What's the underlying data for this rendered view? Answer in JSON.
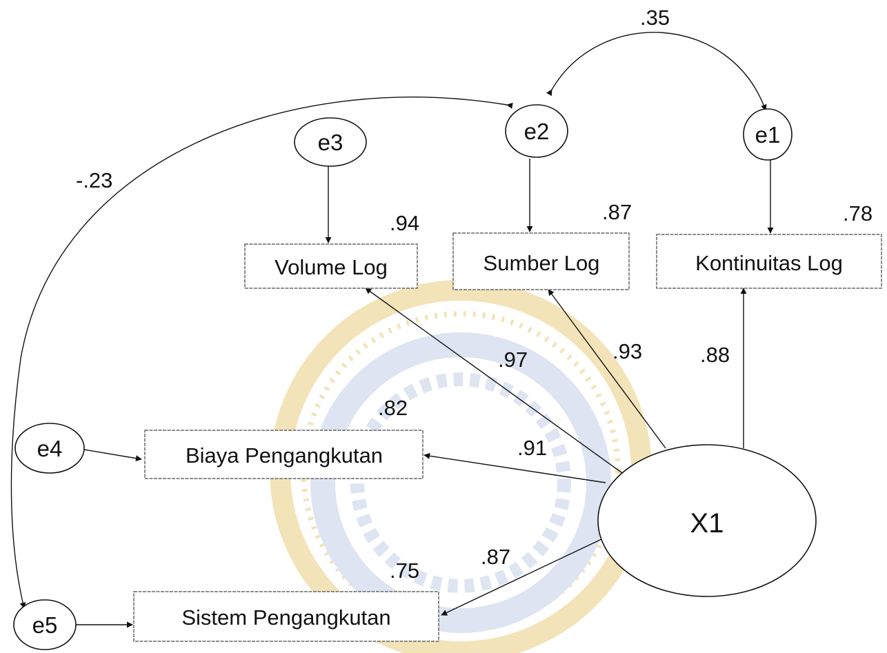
{
  "observed": {
    "volume": {
      "label": "Volume Log",
      "r2": ".94"
    },
    "sumber": {
      "label": "Sumber Log",
      "r2": ".87"
    },
    "kontinuitas": {
      "label": "Kontinuitas Log",
      "r2": ".78"
    },
    "biaya": {
      "label": "Biaya Pengangkutan",
      "r2": ".82"
    },
    "sistem": {
      "label": "Sistem Pengangkutan",
      "r2": ".75"
    }
  },
  "latent": {
    "x1": {
      "label": "X1"
    }
  },
  "errors": {
    "e1": "e1",
    "e2": "e2",
    "e3": "e3",
    "e4": "e4",
    "e5": "e5"
  },
  "loadings": {
    "volume": ".97",
    "sumber": ".93",
    "kontinuitas": ".88",
    "biaya": ".91",
    "sistem": ".87"
  },
  "covariances": {
    "e1_e2": ".35",
    "e2_e5": "-.23"
  },
  "colors": {
    "watermark_gold": "#f3e3b8",
    "watermark_blue": "#dfe4f2",
    "watermark_red": "#f4a9a0"
  }
}
